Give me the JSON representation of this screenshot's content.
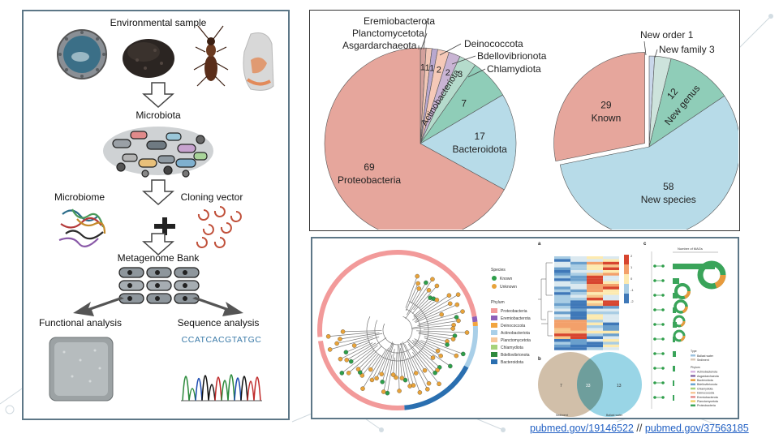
{
  "workflow": {
    "environmental_sample": "Environmental sample",
    "microbiota": "Microbiota",
    "microbiome": "Microbiome",
    "cloning_vector": "Cloning vector",
    "metagenome_bank": "Metagenome Bank",
    "functional_analysis": "Functional analysis",
    "sequence_analysis": "Sequence analysis",
    "sequence": "CCATCACGTATGC"
  },
  "chart_data": [
    {
      "type": "pie",
      "categories": [
        "Proteobacteria",
        "Bacteroidota",
        "Chlamydiota",
        "Actinobacteriota",
        "Bdellovibrionota",
        "Deinococcota",
        "Eremiobacterota",
        "Planctomycetota",
        "Asgardarchaeota"
      ],
      "values": [
        69,
        17,
        7,
        3,
        2,
        2,
        1,
        1,
        1
      ],
      "colors": [
        "#e6a69c",
        "#b7dbe8",
        "#8fcdb8",
        "#b5dbcc",
        "#c9b4d4",
        "#f5c9b8",
        "#b9a8cf",
        "#f2c7b6",
        "#d3a19c"
      ],
      "inner_labels": {
        "0": "Proteobacteria",
        "1": "Bacteroidota",
        "3": "Actinobacteriota"
      }
    },
    {
      "type": "pie",
      "categories": [
        "New species",
        "Known",
        "New genus",
        "New family",
        "New order"
      ],
      "values": [
        58,
        29,
        12,
        3,
        1
      ],
      "colors": [
        "#b7dbe8",
        "#e6a69c",
        "#8fcdb8",
        "#cde3dc",
        "#c9d7ea"
      ],
      "label_values": {
        "0": "58",
        "1": "29",
        "2": "12",
        "3": "3",
        "4": "1"
      },
      "outer_labels": {
        "3": "New family 3",
        "4": "New order 1"
      }
    }
  ],
  "tree": {
    "legend_species_title": "Species",
    "species": [
      {
        "label": "Known",
        "color": "#2e9e4a"
      },
      {
        "label": "Unknown",
        "color": "#e8a33a"
      }
    ],
    "legend_phylum_title": "Phylum",
    "phylum": [
      {
        "label": "Proteobacteria",
        "color": "#f29a9a"
      },
      {
        "label": "Eremiobacterota",
        "color": "#8e5fb8"
      },
      {
        "label": "Deinococcota",
        "color": "#f2a540"
      },
      {
        "label": "Actinobacteriota",
        "color": "#a9cfe8"
      },
      {
        "label": "Planctomycetota",
        "color": "#f7c79a"
      },
      {
        "label": "Chlamydiota",
        "color": "#a6d27a"
      },
      {
        "label": "Bdellovibrionota",
        "color": "#2e8a3e"
      },
      {
        "label": "Bacteroidota",
        "color": "#2a6fb0"
      }
    ]
  },
  "figure_c": {
    "panel_a": "a",
    "panel_b": "b",
    "panel_c": "c",
    "venn_left": "7",
    "venn_middle": "33",
    "venn_right": "13",
    "venn_left_label": "Sediment",
    "venn_right_label": "Ballast water",
    "bar_axis_title": "Number of MAGs",
    "type_title": "Type",
    "type_items": [
      "Ballast water",
      "Sediment"
    ],
    "phylum_title": "Phylum",
    "phylum_items": [
      "Actinobacteriota",
      "Asgardarchaeota",
      "Bacteroidota",
      "Bdellovibrionota",
      "Chlamydiota",
      "Deinococcota",
      "Eremiobacterota",
      "Planctomycetota",
      "Proteobacteria"
    ],
    "phylum_colors": [
      "#d8b4e2",
      "#8a6aa8",
      "#e89a3c",
      "#6aa5d0",
      "#a6d27a",
      "#f7c79a",
      "#e58b8b",
      "#efd36a",
      "#3aa45a"
    ],
    "heat_scale": [
      "2",
      "1",
      "0",
      "-1",
      "-2"
    ]
  },
  "caption": {
    "link1": "pubmed.gov/19146522",
    "separator": "//",
    "link2": "pubmed.gov/37563185"
  }
}
